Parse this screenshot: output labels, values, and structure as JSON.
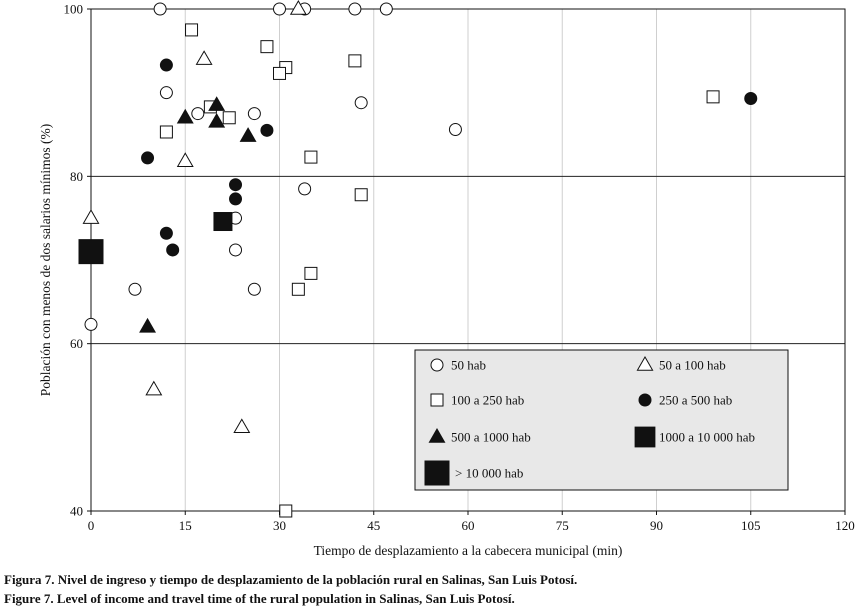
{
  "chart_data": {
    "type": "scatter",
    "title": "",
    "xlabel": "Tiempo de desplazamiento a la cabecera municipal (min)",
    "ylabel": "Población con menos de dos salarios mínimos (%)",
    "xlim": [
      0,
      120
    ],
    "ylim": [
      40,
      100
    ],
    "xticks": [
      "0",
      "15",
      "30",
      "45",
      "60",
      "75",
      "90",
      "105",
      "120"
    ],
    "yticks": [
      "40",
      "60",
      "80",
      "100"
    ],
    "grid": "vertical lines at x ticks; horizontal lines at y ticks",
    "legend_position": "bottom-right",
    "series": [
      {
        "name": "50 hab",
        "marker": "open-circle",
        "points": [
          [
            11,
            100
          ],
          [
            30,
            100
          ],
          [
            34,
            100
          ],
          [
            42,
            100
          ],
          [
            47,
            100
          ],
          [
            12,
            90
          ],
          [
            17,
            87.5
          ],
          [
            26,
            87.5
          ],
          [
            43,
            88.8
          ],
          [
            58,
            85.6
          ],
          [
            34,
            78.5
          ],
          [
            23,
            75
          ],
          [
            23,
            71.2
          ],
          [
            7,
            66.5
          ],
          [
            26,
            66.5
          ],
          [
            0,
            62.3
          ]
        ]
      },
      {
        "name": "50 a 100 hab",
        "marker": "open-triangle",
        "points": [
          [
            33,
            100
          ],
          [
            18,
            94
          ],
          [
            15,
            81.8
          ],
          [
            0,
            75
          ],
          [
            10,
            54.5
          ],
          [
            24,
            50
          ]
        ]
      },
      {
        "name": "100 a 250 hab",
        "marker": "open-square",
        "points": [
          [
            16,
            97.5
          ],
          [
            28,
            95.5
          ],
          [
            42,
            93.8
          ],
          [
            31,
            93
          ],
          [
            30,
            92.3
          ],
          [
            19,
            88.3
          ],
          [
            22,
            87
          ],
          [
            12,
            85.3
          ],
          [
            35,
            82.3
          ],
          [
            43,
            77.8
          ],
          [
            35,
            68.4
          ],
          [
            33,
            66.5
          ],
          [
            31,
            40
          ],
          [
            99,
            89.5
          ]
        ]
      },
      {
        "name": "250 a 500 hab",
        "marker": "filled-circle",
        "points": [
          [
            12,
            93.3
          ],
          [
            28,
            85.5
          ],
          [
            9,
            82.2
          ],
          [
            23,
            79
          ],
          [
            23,
            77.3
          ],
          [
            12,
            73.2
          ],
          [
            13,
            71.2
          ],
          [
            105,
            89.3
          ]
        ]
      },
      {
        "name": "500 a 1000 hab",
        "marker": "filled-triangle",
        "points": [
          [
            20,
            88.5
          ],
          [
            15,
            87
          ],
          [
            20,
            86.5
          ],
          [
            25,
            84.8
          ],
          [
            9,
            62
          ]
        ]
      },
      {
        "name": "1000 a 10 000 hab",
        "marker": "filled-square",
        "points": [
          [
            21,
            74.6
          ]
        ]
      },
      {
        "name": "> 10 000 hab",
        "marker": "filled-square-large",
        "points": [
          [
            0,
            71
          ]
        ]
      }
    ]
  },
  "caption": {
    "line1": "Figura 7. Nivel de ingreso y tiempo de desplazamiento de la población rural en Salinas, San Luis Potosí.",
    "line2": "Figure 7. Level of income and travel time of the rural population in Salinas, San Luis Potosí."
  }
}
